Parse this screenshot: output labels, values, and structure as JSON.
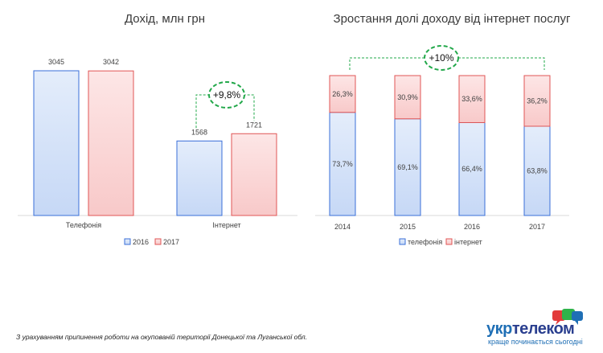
{
  "chart_data": [
    {
      "type": "bar",
      "title": "Дохід, млн грн",
      "categories": [
        "Телефонія",
        "Інтернет"
      ],
      "series": [
        {
          "name": "2016",
          "values": [
            3045,
            1568
          ],
          "color": "#3a6fd8"
        },
        {
          "name": "2017",
          "values": [
            3042,
            1721
          ],
          "color": "#e05555"
        }
      ],
      "annotation": "+9,8%",
      "legend": "bottom",
      "grid": false
    },
    {
      "type": "bar",
      "stacked": true,
      "title": "Зростання долі доходу від інтернет послуг",
      "categories": [
        "2014",
        "2015",
        "2016",
        "2017"
      ],
      "series": [
        {
          "name": "телефонія",
          "values": [
            73.7,
            69.1,
            66.4,
            63.8
          ],
          "labels": [
            "73,7%",
            "69,1%",
            "66,4%",
            "63,8%"
          ],
          "color": "#3a6fd8"
        },
        {
          "name": "інтернет",
          "values": [
            26.3,
            30.9,
            33.6,
            36.2
          ],
          "labels": [
            "26,3%",
            "30,9%",
            "33,6%",
            "36,2%"
          ],
          "color": "#e05555"
        }
      ],
      "annotation": "+10%",
      "legend": "bottom",
      "grid": false
    }
  ],
  "footnote": "З урахуванням припинення роботи на окупованій території Донецької та Луганської обл.",
  "logo": {
    "brand_part1": "укр",
    "brand_part2": "телеком",
    "slogan": "краще починається сьогодні"
  }
}
